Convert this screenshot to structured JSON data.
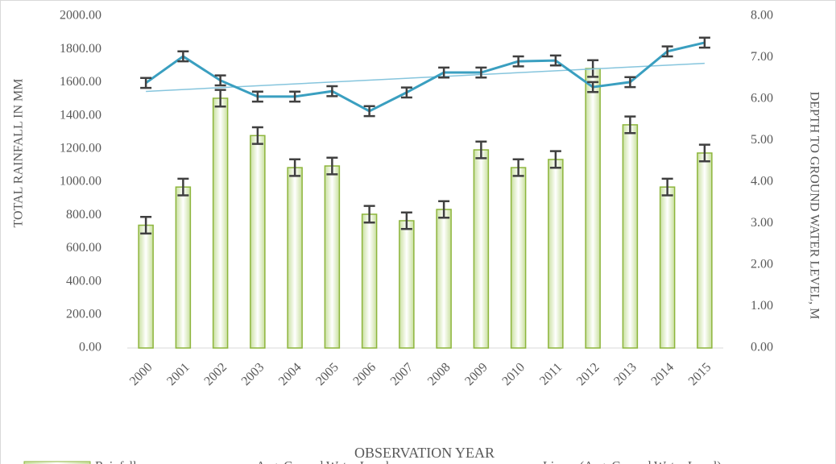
{
  "chart_data": {
    "type": "bar-line",
    "y_label": "TOTAL RAINFALL IN MM",
    "y2_label": "DEPTH TO GROUND WATER LEVEL, M",
    "x_label": "OBSERVATION YEAR",
    "categories": [
      "2000",
      "2001",
      "2002",
      "2003",
      "2004",
      "2005",
      "2006",
      "2007",
      "2008",
      "2009",
      "2010",
      "2011",
      "2012",
      "2013",
      "2014",
      "2015"
    ],
    "series": [
      {
        "name": "Rainfall",
        "type": "bar",
        "color": "#8db53c",
        "fill": "#e6f1d6",
        "values": [
          740,
          970,
          1505,
          1280,
          1087,
          1097,
          806,
          767,
          835,
          1194,
          1087,
          1136,
          1684,
          1345,
          970,
          1175
        ],
        "errors": [
          50,
          50,
          50,
          50,
          50,
          50,
          50,
          50,
          50,
          50,
          50,
          50,
          50,
          50,
          50,
          50
        ]
      },
      {
        "name": "Avg. Ground Water Level",
        "type": "line",
        "axis": "y2",
        "color": "#3a9fc0",
        "values": [
          6.39,
          7.03,
          6.45,
          6.06,
          6.06,
          6.19,
          5.71,
          6.16,
          6.64,
          6.64,
          6.91,
          6.93,
          6.29,
          6.41,
          7.15,
          7.36
        ],
        "errors": [
          0.12,
          0.12,
          0.12,
          0.12,
          0.12,
          0.12,
          0.12,
          0.12,
          0.12,
          0.12,
          0.12,
          0.12,
          0.12,
          0.12,
          0.12,
          0.12
        ],
        "trendline": {
          "name": "Linear (Avg. Ground Water Level)",
          "color": "#86c5dd"
        }
      }
    ],
    "ylim": [
      0,
      2000
    ],
    "yticks": [
      {
        "value": 0,
        "label": "0.00"
      },
      {
        "value": 200,
        "label": "200.00"
      },
      {
        "value": 400,
        "label": "400.00"
      },
      {
        "value": 600,
        "label": "600.00"
      },
      {
        "value": 800,
        "label": "800.00"
      },
      {
        "value": 1000,
        "label": "1000.00"
      },
      {
        "value": 1200,
        "label": "1200.00"
      },
      {
        "value": 1400,
        "label": "1400.00"
      },
      {
        "value": 1600,
        "label": "1600.00"
      },
      {
        "value": 1800,
        "label": "1800.00"
      },
      {
        "value": 2000,
        "label": "2000.00"
      }
    ],
    "y2lim": [
      0,
      8
    ],
    "y2ticks": [
      {
        "value": 0,
        "label": "0.00"
      },
      {
        "value": 1,
        "label": "1.00"
      },
      {
        "value": 2,
        "label": "2.00"
      },
      {
        "value": 3,
        "label": "3.00"
      },
      {
        "value": 4,
        "label": "4.00"
      },
      {
        "value": 5,
        "label": "5.00"
      },
      {
        "value": 6,
        "label": "6.00"
      },
      {
        "value": 7,
        "label": "7.00"
      },
      {
        "value": 8,
        "label": "8.00"
      }
    ],
    "legend": "bottom"
  }
}
